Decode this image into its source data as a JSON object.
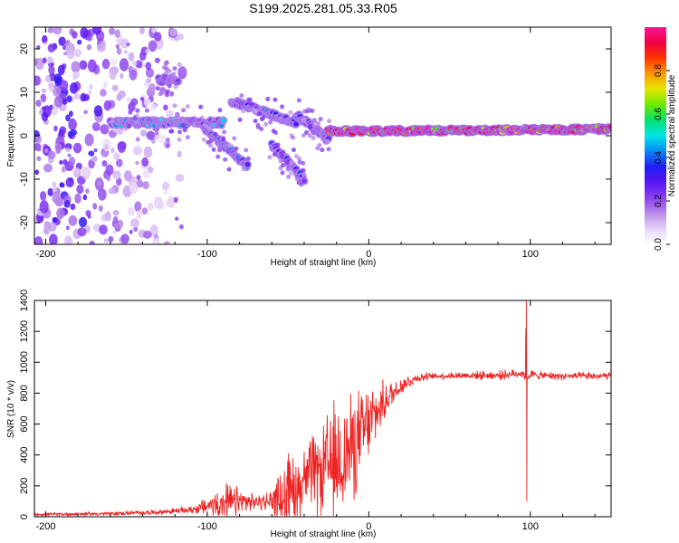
{
  "title": "S199.2025.281.05.33.R05",
  "chart_data": [
    {
      "type": "heatmap",
      "name": "spectrogram",
      "xlabel": "Height of straight line (km)",
      "ylabel": "Frequency (Hz)",
      "xlim": [
        -207,
        150
      ],
      "ylim": [
        -25,
        25
      ],
      "xticks": [
        -200,
        -100,
        0,
        100
      ],
      "yticks": [
        20,
        10,
        0,
        -10,
        -20
      ],
      "colorbar": {
        "label": "Normalized spectral amplitude",
        "range": [
          0,
          1
        ],
        "ticks": [
          "0.0",
          "0.2",
          "0.4",
          "0.6",
          "0.8"
        ],
        "colors": [
          "#ffffff",
          "#e7d4f7",
          "#b98be8",
          "#8a3ff0",
          "#5a14f0",
          "#1e1ef5",
          "#0a88f5",
          "#00e6e6",
          "#00e070",
          "#6ee800",
          "#e6e600",
          "#ff9900",
          "#ff3300",
          "#f00040",
          "#ff1493"
        ]
      },
      "features": [
        {
          "kind": "noise",
          "x": [
            -207,
            -115
          ],
          "freq_range": [
            -25,
            25
          ],
          "amplitude": 0.2
        },
        {
          "kind": "ridge",
          "x": [
            -160,
            -90
          ],
          "freq": [
            3,
            3
          ],
          "amplitude": 0.4
        },
        {
          "kind": "ridge",
          "x": [
            -105,
            -75
          ],
          "freq": [
            3,
            -7
          ],
          "amplitude": 0.35
        },
        {
          "kind": "ridge",
          "x": [
            -85,
            -45
          ],
          "freq": [
            8,
            3
          ],
          "amplitude": 0.35
        },
        {
          "kind": "ridge",
          "x": [
            -60,
            -40
          ],
          "freq": [
            -2,
            -10
          ],
          "amplitude": 0.3
        },
        {
          "kind": "ridge",
          "x": [
            -45,
            -25
          ],
          "freq": [
            5,
            -1
          ],
          "amplitude": 0.3
        },
        {
          "kind": "ridge",
          "x": [
            -130,
            -118
          ],
          "freq": [
            13,
            13
          ],
          "amplitude": 0.25
        },
        {
          "kind": "ridge",
          "x": [
            -25,
            150
          ],
          "freq": [
            1,
            1.5
          ],
          "amplitude": 0.85
        }
      ]
    },
    {
      "type": "line",
      "name": "snr",
      "xlabel": "Height of straight line (km)",
      "ylabel": "SNR (10 * v/v)",
      "xlim": [
        -207,
        150
      ],
      "ylim": [
        0,
        1400
      ],
      "xticks": [
        -200,
        -100,
        0,
        100
      ],
      "yticks": [
        0,
        200,
        400,
        600,
        800,
        1000,
        1200,
        1400
      ],
      "color": "#ee2222",
      "envelope": {
        "x": [
          -207,
          -160,
          -130,
          -110,
          -100,
          -90,
          -80,
          -70,
          -60,
          -50,
          -40,
          -30,
          -20,
          -10,
          0,
          10,
          20,
          30,
          40,
          60,
          80,
          95,
          98,
          100,
          105,
          120,
          150
        ],
        "baseline": [
          15,
          20,
          30,
          45,
          70,
          90,
          95,
          95,
          100,
          150,
          250,
          300,
          350,
          450,
          600,
          750,
          850,
          900,
          910,
          915,
          915,
          930,
          900,
          920,
          915,
          910,
          910
        ],
        "noise": [
          10,
          12,
          15,
          25,
          60,
          120,
          100,
          40,
          80,
          250,
          200,
          300,
          400,
          350,
          250,
          120,
          60,
          30,
          20,
          25,
          30,
          30,
          30,
          30,
          25,
          25,
          25
        ]
      },
      "spikes": [
        {
          "x": 97.5,
          "y": 1400
        },
        {
          "x": 97.8,
          "y": 100
        },
        {
          "x": 97.2,
          "y": 1220
        }
      ]
    }
  ]
}
